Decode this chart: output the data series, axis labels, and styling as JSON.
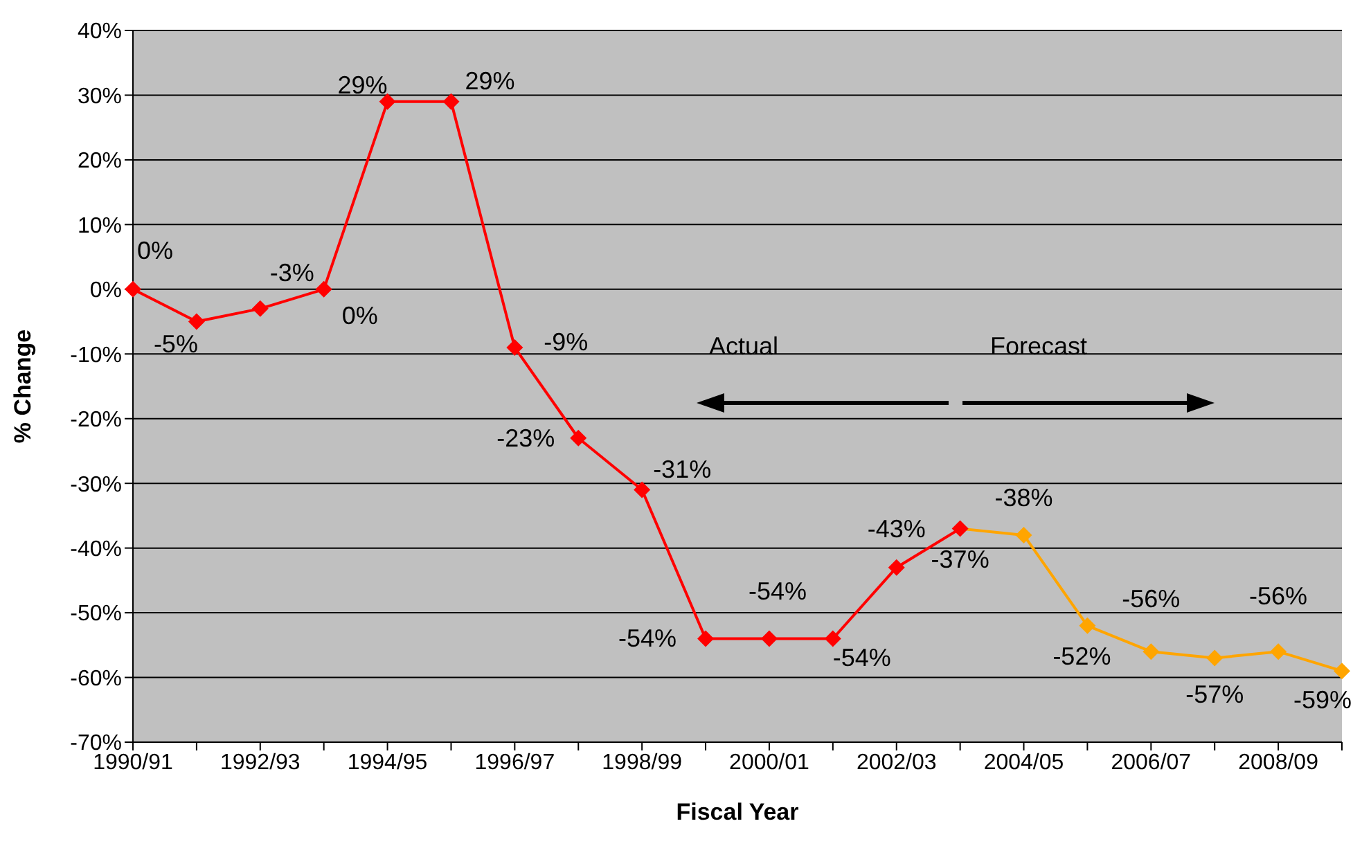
{
  "chart_data": {
    "type": "line",
    "xlabel": "Fiscal Year",
    "ylabel": "% Change",
    "categories": [
      "1990/91",
      null,
      "1992/93",
      null,
      "1994/95",
      null,
      "1996/97",
      null,
      "1998/99",
      null,
      "2000/01",
      null,
      "2002/03",
      null,
      "2004/05",
      null,
      "2006/07",
      null,
      "2008/09",
      null
    ],
    "series": [
      {
        "color": "#ff0000",
        "values": [
          0,
          -5,
          -3,
          0,
          29,
          29,
          -9,
          -23,
          -31,
          -54,
          -54,
          -54,
          -43,
          -37,
          null,
          null,
          null,
          null,
          null,
          null
        ],
        "value_labels": [
          "0%",
          "-5%",
          "-3%",
          "0%",
          "29%",
          "29%",
          "-9%",
          "-23%",
          "-31%",
          "-54%",
          "-54%",
          "-54%",
          "-43%",
          "-37%",
          null,
          null,
          null,
          null,
          null,
          null
        ]
      },
      {
        "color": "#ffa500",
        "values": [
          null,
          null,
          null,
          null,
          null,
          null,
          null,
          null,
          null,
          null,
          null,
          null,
          null,
          -37,
          -38,
          -52,
          -56,
          -57,
          -56,
          -59
        ],
        "value_labels": [
          null,
          null,
          null,
          null,
          null,
          null,
          null,
          null,
          null,
          null,
          null,
          null,
          null,
          null,
          "-38%",
          "-52%",
          "-56%",
          "-57%",
          "-56%",
          "-59%"
        ]
      }
    ],
    "ylim": [
      -70,
      40
    ],
    "yticks": [
      {
        "value": -70,
        "label": "-70%"
      },
      {
        "value": -60,
        "label": "-60%"
      },
      {
        "value": -50,
        "label": "-50%"
      },
      {
        "value": -40,
        "label": "-40%"
      },
      {
        "value": -30,
        "label": "-30%"
      },
      {
        "value": -20,
        "label": "-20%"
      },
      {
        "value": -10,
        "label": "-10%"
      },
      {
        "value": 0,
        "label": "0%"
      },
      {
        "value": 10,
        "label": "10%"
      },
      {
        "value": 20,
        "label": "20%"
      },
      {
        "value": 30,
        "label": "30%"
      },
      {
        "value": 40,
        "label": "40%"
      }
    ],
    "grid": "y",
    "marker": "diamond",
    "line_style": "solid",
    "annotations": [
      "Actual",
      "Forecast"
    ]
  }
}
